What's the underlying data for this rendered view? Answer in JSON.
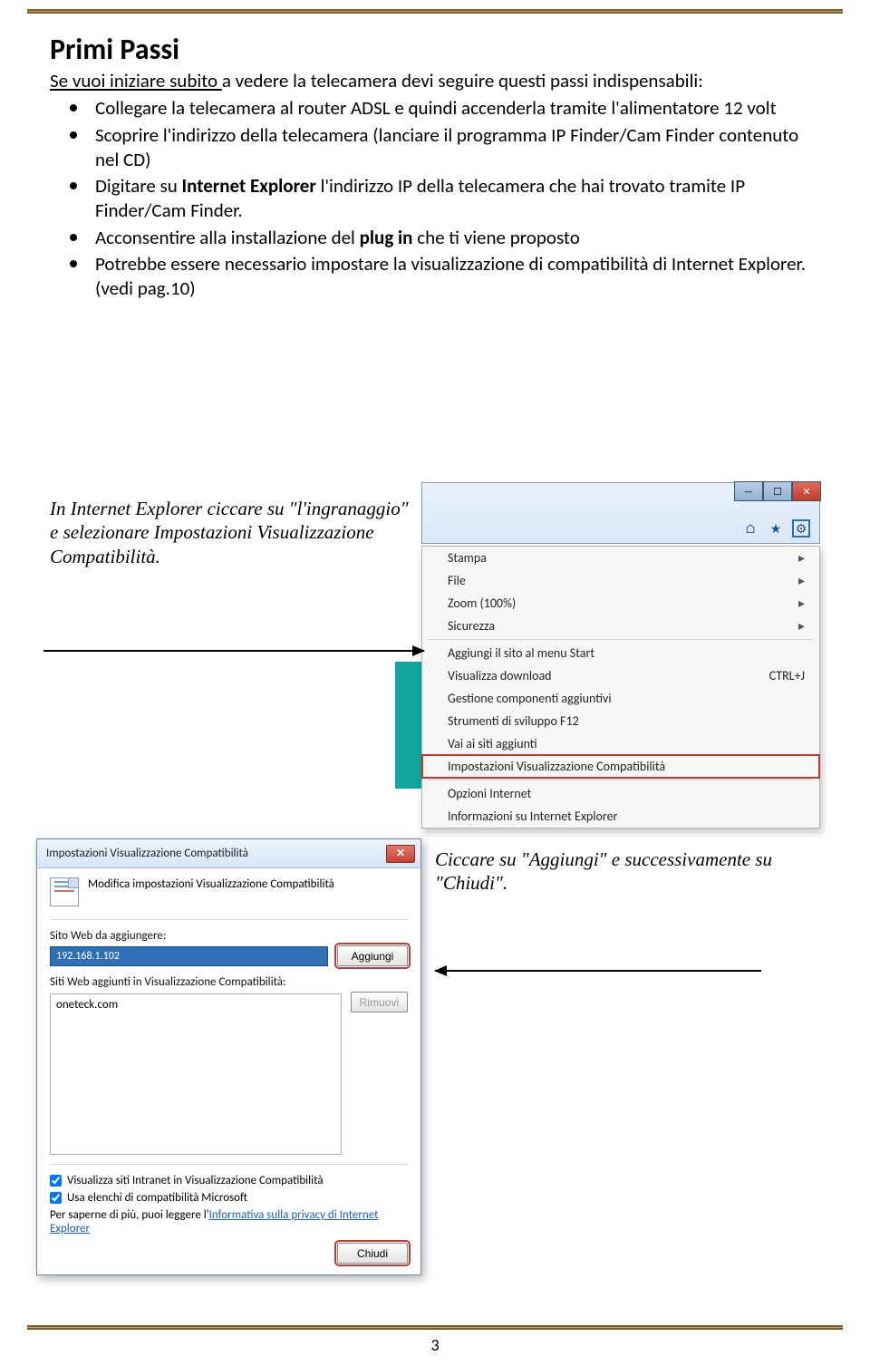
{
  "page": {
    "number": "3"
  },
  "heading": "Primi Passi",
  "subtitle_pre": "Se vuoi iniziare  subito ",
  "subtitle_post": "a vedere la telecamera devi seguire questi passi indispensabili:",
  "bullets": [
    {
      "html": "Collegare la telecamera al router ADSL e quindi accenderla tramite l'alimentatore 12 volt"
    },
    {
      "html": "Scoprire l'indirizzo della telecamera (lanciare il programma IP Finder/Cam Finder contenuto nel CD)"
    },
    {
      "html": "Digitare su <b>Internet Explorer</b> l'indirizzo IP della telecamera che hai trovato tramite IP Finder/Cam Finder."
    },
    {
      "html": "Acconsentire alla installazione del <b>plug in</b> che ti viene proposto"
    },
    {
      "html": "Potrebbe essere necessario impostare la visualizzazione di compatibilità di Internet Explorer. (vedi pag.10)"
    }
  ],
  "caption1": "In Internet Explorer ciccare su \"l'ingranaggio\" e selezionare Impostazioni Visualizzazione Compatibilità.",
  "caption2": "Ciccare su \"Aggiungi\" e successivamente su \"Chiudi\".",
  "ie_corner": {
    "btn_min": "—",
    "btn_max": "☐",
    "btn_close": "✕",
    "icons": {
      "home": "⌂",
      "star": "★",
      "gear": "⚙"
    }
  },
  "ctx_menu": {
    "items": [
      {
        "label": "Stampa",
        "arrow": true
      },
      {
        "label": "File",
        "arrow": true
      },
      {
        "label": "Zoom (100%)",
        "arrow": true
      },
      {
        "label": "Sicurezza",
        "arrow": true
      },
      {
        "sep": true
      },
      {
        "label": "Aggiungi il sito al menu Start"
      },
      {
        "label": "Visualizza download",
        "shortcut": "CTRL+J"
      },
      {
        "label": "Gestione componenti aggiuntivi"
      },
      {
        "label": "Strumenti di sviluppo F12"
      },
      {
        "label": "Vai ai siti aggiunti"
      },
      {
        "label": "Impostazioni Visualizzazione Compatibilità",
        "highlight": true
      },
      {
        "sep": true
      },
      {
        "label": "Opzioni Internet"
      },
      {
        "label": "Informazioni su Internet Explorer"
      }
    ]
  },
  "compat": {
    "title": "Impostazioni Visualizzazione Compatibilità",
    "desc": "Modifica impostazioni Visualizzazione Compatibilità",
    "label_add": "Sito Web da aggiungere:",
    "input_value": "192.168.1.102",
    "btn_add": "Aggiungi",
    "label_list": "Siti Web aggiunti in Visualizzazione Compatibilità:",
    "list_item": "oneteck.com",
    "btn_remove": "Rimuovi",
    "chk1": "Visualizza siti Intranet in Visualizzazione Compatibilità",
    "chk2": "Usa elenchi di compatibilità Microsoft",
    "info_pre": "Per saperne di più, puoi leggere l'",
    "info_link": "Informativa sulla privacy di Internet Explorer",
    "btn_close": "Chiudi"
  },
  "colors": {
    "rule": "#c0a062",
    "rule_border": "#7a5c2e",
    "highlight_red": "#c43a2e",
    "ie_blue": "#2a6fc9",
    "teal": "#12a6a0"
  }
}
